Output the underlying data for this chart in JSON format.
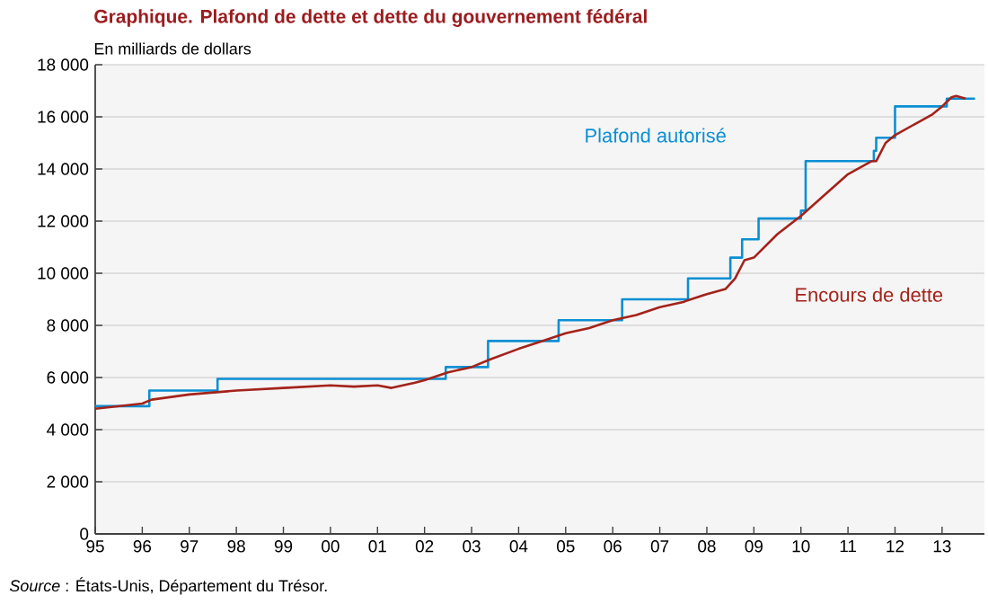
{
  "chart_data": {
    "type": "line",
    "title": "Graphique. Plafond de dette et dette du gouvernement fédéral",
    "ylabel": "En milliards de dollars",
    "annotations": [
      "*Source* : États-Unis, Département du Trésor."
    ],
    "xlim": [
      1995,
      2013.9
    ],
    "xticks": [
      {
        "value": 1995,
        "label": "95"
      },
      {
        "value": 1996,
        "label": "96"
      },
      {
        "value": 1997,
        "label": "97"
      },
      {
        "value": 1998,
        "label": "98"
      },
      {
        "value": 1999,
        "label": "99"
      },
      {
        "value": 2000,
        "label": "00"
      },
      {
        "value": 2001,
        "label": "01"
      },
      {
        "value": 2002,
        "label": "02"
      },
      {
        "value": 2003,
        "label": "03"
      },
      {
        "value": 2004,
        "label": "04"
      },
      {
        "value": 2005,
        "label": "05"
      },
      {
        "value": 2006,
        "label": "06"
      },
      {
        "value": 2007,
        "label": "07"
      },
      {
        "value": 2008,
        "label": "08"
      },
      {
        "value": 2009,
        "label": "09"
      },
      {
        "value": 2010,
        "label": "10"
      },
      {
        "value": 2011,
        "label": "11"
      },
      {
        "value": 2012,
        "label": "12"
      },
      {
        "value": 2013,
        "label": "13"
      }
    ],
    "ylim": [
      0,
      18000
    ],
    "yticks": [
      0,
      {
        "value": 2000,
        "label": "2 000"
      },
      {
        "value": 4000,
        "label": "4 000"
      },
      {
        "value": 6000,
        "label": "6 000"
      },
      {
        "value": 8000,
        "label": "8 000"
      },
      {
        "value": 10000,
        "label": "10 000"
      },
      {
        "value": 12000,
        "label": "12 000"
      },
      {
        "value": 14000,
        "label": "14 000"
      },
      {
        "value": 16000,
        "label": "16 000"
      },
      {
        "value": 18000,
        "label": "18 000"
      }
    ],
    "grid": "y",
    "series": [
      {
        "name": "Plafond autorisé",
        "type": "step",
        "color": "#0a8fd4",
        "x": [
          1995,
          1996.15,
          1997.6,
          2002.45,
          2003.35,
          2004.85,
          2006.2,
          2007.6,
          2008.5,
          2008.75,
          2009.1,
          2010.0,
          2010.1,
          2011.55,
          2011.6,
          2012.0,
          2013.1,
          2013.7
        ],
        "values": [
          4900,
          5500,
          5950,
          6400,
          7400,
          8200,
          9000,
          9800,
          10600,
          11300,
          12100,
          12400,
          14300,
          14700,
          15200,
          16400,
          16700,
          16700
        ]
      },
      {
        "name": "Encours de dette",
        "color": "#a3231b",
        "x": [
          1995,
          1996,
          1996.2,
          1997,
          1998,
          1999,
          2000,
          2000.5,
          2001,
          2001.3,
          2001.8,
          2002,
          2002.5,
          2003,
          2003.4,
          2004,
          2004.5,
          2005,
          2005.5,
          2006,
          2006.5,
          2007,
          2007.5,
          2008,
          2008.4,
          2008.6,
          2008.8,
          2009,
          2009.5,
          2010,
          2010.5,
          2011,
          2011.5,
          2011.6,
          2011.8,
          2012,
          2012.5,
          2012.8,
          2013,
          2013.2,
          2013.3,
          2013.5
        ],
        "values": [
          4800,
          5000,
          5150,
          5350,
          5500,
          5600,
          5700,
          5650,
          5700,
          5600,
          5800,
          5900,
          6200,
          6400,
          6700,
          7100,
          7400,
          7700,
          7900,
          8200,
          8400,
          8700,
          8900,
          9200,
          9400,
          9800,
          10500,
          10600,
          11500,
          12200,
          13000,
          13800,
          14300,
          14300,
          15000,
          15300,
          15800,
          16100,
          16400,
          16750,
          16800,
          16700
        ]
      }
    ]
  }
}
